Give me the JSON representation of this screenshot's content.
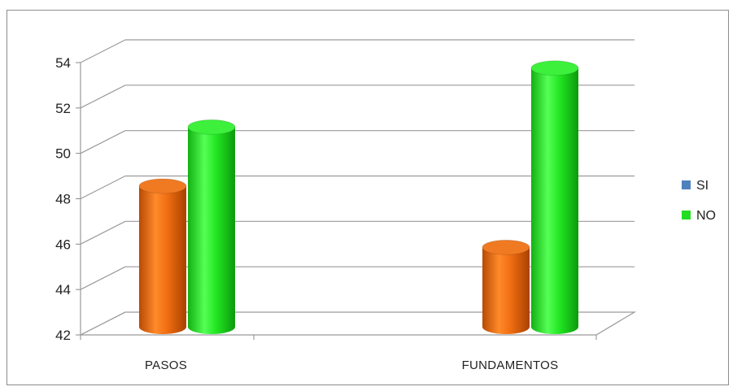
{
  "chart_data": {
    "type": "bar",
    "categories": [
      "PASOS",
      "FUNDAMENTOS"
    ],
    "series": [
      {
        "name": "SI",
        "values": [
          48.7,
          46.0
        ],
        "color": "#e8650a",
        "legend_color": "#4f81bd"
      },
      {
        "name": "NO",
        "values": [
          51.3,
          53.9
        ],
        "color": "#22dd22",
        "legend_color": "#22dd22"
      }
    ],
    "ylim": [
      42,
      54
    ],
    "yticks": [
      42,
      44,
      46,
      48,
      50,
      52,
      54
    ],
    "grid": true,
    "legend": "right",
    "style": "3d-cylinder"
  }
}
